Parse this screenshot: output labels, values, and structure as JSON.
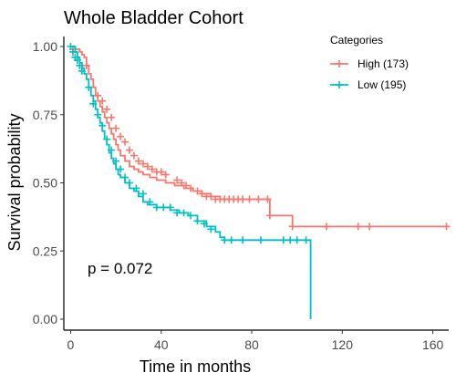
{
  "chart_data": {
    "type": "line",
    "title": "Whole Bladder Cohort",
    "xlabel": "Time in months",
    "ylabel": "Survival probability",
    "xlim": [
      -3,
      167
    ],
    "ylim": [
      0,
      1
    ],
    "xticks": [
      0,
      40,
      80,
      120,
      160
    ],
    "yticks": [
      0.0,
      0.25,
      0.5,
      0.75,
      1.0
    ],
    "xtick_labels": [
      "0",
      "40",
      "80",
      "120",
      "160"
    ],
    "ytick_labels": [
      "0.00",
      "0.25",
      "0.50",
      "0.75",
      "1.00"
    ],
    "grid": false,
    "legend": {
      "title": "Categories",
      "position": "top-right"
    },
    "annotation": "p = 0.072",
    "series": [
      {
        "name": "High (173)",
        "color": "#F8766D",
        "step": [
          [
            0,
            1.0
          ],
          [
            1,
            1.0
          ],
          [
            2,
            0.99
          ],
          [
            4,
            0.98
          ],
          [
            5,
            0.97
          ],
          [
            6,
            0.96
          ],
          [
            7,
            0.93
          ],
          [
            8,
            0.9
          ],
          [
            9,
            0.88
          ],
          [
            10,
            0.85
          ],
          [
            11,
            0.82
          ],
          [
            12,
            0.8
          ],
          [
            13,
            0.78
          ],
          [
            14,
            0.76
          ],
          [
            15,
            0.74
          ],
          [
            16,
            0.72
          ],
          [
            17,
            0.7
          ],
          [
            18,
            0.68
          ],
          [
            19,
            0.66
          ],
          [
            20,
            0.64
          ],
          [
            21,
            0.62
          ],
          [
            22,
            0.6
          ],
          [
            24,
            0.58
          ],
          [
            26,
            0.56
          ],
          [
            28,
            0.55
          ],
          [
            30,
            0.54
          ],
          [
            32,
            0.53
          ],
          [
            35,
            0.52
          ],
          [
            38,
            0.51
          ],
          [
            42,
            0.5
          ],
          [
            46,
            0.49
          ],
          [
            50,
            0.48
          ],
          [
            54,
            0.47
          ],
          [
            58,
            0.46
          ],
          [
            62,
            0.45
          ],
          [
            66,
            0.44
          ],
          [
            72,
            0.44
          ],
          [
            86,
            0.44
          ],
          [
            88,
            0.38
          ],
          [
            98,
            0.38
          ],
          [
            98,
            0.34
          ],
          [
            166,
            0.34
          ]
        ],
        "censored": [
          [
            1,
            0.99
          ],
          [
            7,
            0.93
          ],
          [
            12,
            0.82
          ],
          [
            14,
            0.8
          ],
          [
            16,
            0.77
          ],
          [
            18,
            0.74
          ],
          [
            20,
            0.7
          ],
          [
            22,
            0.67
          ],
          [
            24,
            0.65
          ],
          [
            26,
            0.62
          ],
          [
            28,
            0.6
          ],
          [
            30,
            0.58
          ],
          [
            32,
            0.57
          ],
          [
            34,
            0.56
          ],
          [
            36,
            0.55
          ],
          [
            38,
            0.54
          ],
          [
            40,
            0.54
          ],
          [
            42,
            0.53
          ],
          [
            47,
            0.51
          ],
          [
            49,
            0.5
          ],
          [
            51,
            0.49
          ],
          [
            53,
            0.48
          ],
          [
            56,
            0.47
          ],
          [
            58,
            0.46
          ],
          [
            60,
            0.45
          ],
          [
            62,
            0.45
          ],
          [
            64,
            0.44
          ],
          [
            66,
            0.44
          ],
          [
            68,
            0.44
          ],
          [
            70,
            0.44
          ],
          [
            72,
            0.44
          ],
          [
            74,
            0.44
          ],
          [
            76,
            0.44
          ],
          [
            79,
            0.44
          ],
          [
            83,
            0.44
          ],
          [
            87,
            0.44
          ],
          [
            88,
            0.38
          ],
          [
            98,
            0.34
          ],
          [
            113,
            0.34
          ],
          [
            127,
            0.34
          ],
          [
            132,
            0.34
          ],
          [
            166,
            0.34
          ]
        ]
      },
      {
        "name": "Low (195)",
        "color": "#00BFC4",
        "step": [
          [
            0,
            1.0
          ],
          [
            1,
            1.0
          ],
          [
            2,
            0.98
          ],
          [
            3,
            0.96
          ],
          [
            4,
            0.94
          ],
          [
            5,
            0.92
          ],
          [
            6,
            0.9
          ],
          [
            7,
            0.88
          ],
          [
            8,
            0.85
          ],
          [
            9,
            0.82
          ],
          [
            10,
            0.8
          ],
          [
            11,
            0.77
          ],
          [
            12,
            0.74
          ],
          [
            13,
            0.72
          ],
          [
            14,
            0.69
          ],
          [
            15,
            0.66
          ],
          [
            16,
            0.64
          ],
          [
            17,
            0.61
          ],
          [
            18,
            0.59
          ],
          [
            19,
            0.57
          ],
          [
            20,
            0.55
          ],
          [
            21,
            0.53
          ],
          [
            22,
            0.52
          ],
          [
            24,
            0.5
          ],
          [
            26,
            0.48
          ],
          [
            28,
            0.47
          ],
          [
            30,
            0.45
          ],
          [
            32,
            0.43
          ],
          [
            34,
            0.42
          ],
          [
            38,
            0.41
          ],
          [
            44,
            0.4
          ],
          [
            48,
            0.39
          ],
          [
            52,
            0.38
          ],
          [
            56,
            0.36
          ],
          [
            60,
            0.34
          ],
          [
            64,
            0.32
          ],
          [
            66,
            0.3
          ],
          [
            68,
            0.29
          ],
          [
            106,
            0.29
          ],
          [
            106,
            0.0
          ]
        ],
        "censored": [
          [
            0,
            1.0
          ],
          [
            1,
            0.98
          ],
          [
            2,
            0.96
          ],
          [
            3,
            0.95
          ],
          [
            4,
            0.93
          ],
          [
            5,
            0.91
          ],
          [
            8,
            0.85
          ],
          [
            10,
            0.79
          ],
          [
            12,
            0.75
          ],
          [
            14,
            0.71
          ],
          [
            16,
            0.66
          ],
          [
            18,
            0.62
          ],
          [
            20,
            0.58
          ],
          [
            22,
            0.55
          ],
          [
            24,
            0.52
          ],
          [
            26,
            0.5
          ],
          [
            29,
            0.48
          ],
          [
            32,
            0.46
          ],
          [
            35,
            0.43
          ],
          [
            38,
            0.41
          ],
          [
            41,
            0.41
          ],
          [
            44,
            0.41
          ],
          [
            47,
            0.39
          ],
          [
            50,
            0.39
          ],
          [
            53,
            0.38
          ],
          [
            56,
            0.36
          ],
          [
            59,
            0.35
          ],
          [
            62,
            0.33
          ],
          [
            68,
            0.29
          ],
          [
            71,
            0.29
          ],
          [
            76,
            0.29
          ],
          [
            84,
            0.29
          ],
          [
            94,
            0.29
          ],
          [
            97,
            0.29
          ],
          [
            100,
            0.29
          ],
          [
            104,
            0.29
          ]
        ]
      }
    ]
  }
}
